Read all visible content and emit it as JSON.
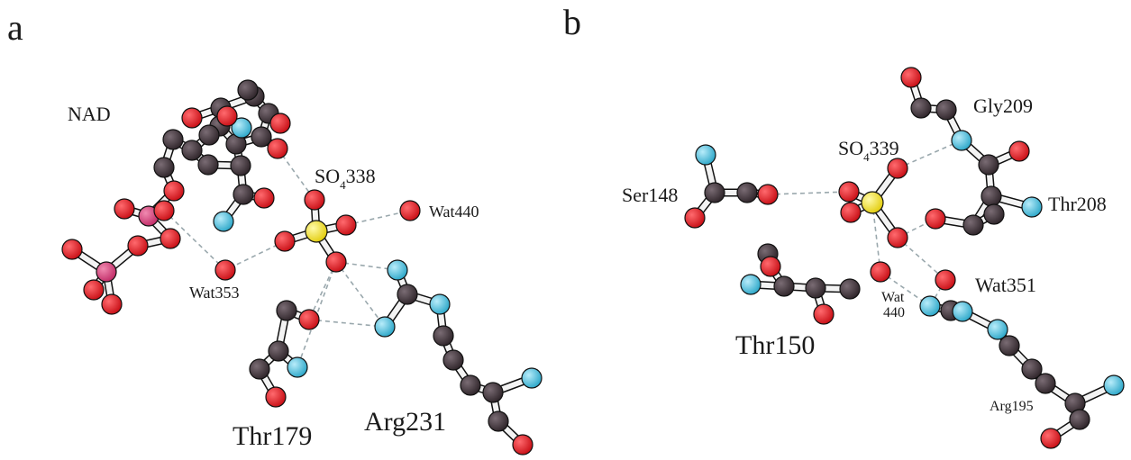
{
  "panels": [
    {
      "letter": "a",
      "labels": {
        "nad": "NAD",
        "sulfate": "SO",
        "sulfate_sub": "4",
        "sulfate_num": "338",
        "wat440": "Wat440",
        "wat353": "Wat353",
        "thr179": "Thr179",
        "arg231": "Arg231"
      }
    },
    {
      "letter": "b",
      "labels": {
        "gly209": "Gly209",
        "sulfate": "SO",
        "sulfate_sub": "4",
        "sulfate_num": "339",
        "ser148": "Ser148",
        "thr208": "Thr208",
        "thr150": "Thr150",
        "wat351": "Wat351",
        "wat440_line1": "Wat",
        "wat440_line2": "440",
        "arg195": "Arg195"
      }
    }
  ],
  "colors": {
    "carbon": "#3b3035",
    "oxygen": "#e0161e",
    "nitrogen": "#3ab8d8",
    "sulfur": "#f2e21a",
    "phosphorus": "#d63a78",
    "bond": "#f3f3f3",
    "hbond": "#9aa8ad"
  }
}
